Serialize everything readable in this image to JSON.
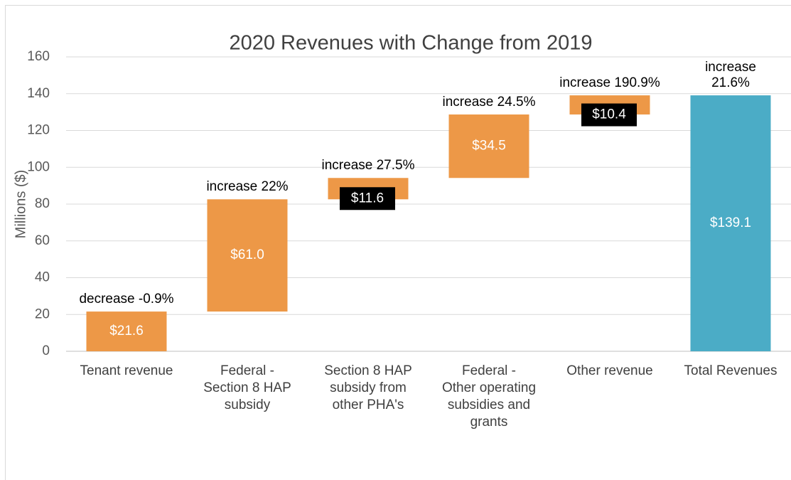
{
  "chart_data": {
    "type": "waterfall",
    "title": "2020 Revenues with Change from 2019",
    "y_label": "Millions ($)",
    "categories": [
      "Tenant revenue",
      "Federal -\nSection 8 HAP\nsubsidy",
      "Section 8 HAP\nsubsidy from\nother PHA's",
      "Federal -\nOther operating\nsubsidies and\ngrants",
      "Other revenue",
      "Total Revenues"
    ],
    "values": [
      21.6,
      61.0,
      11.6,
      34.5,
      10.4,
      139.1
    ],
    "value_labels": [
      "$21.6",
      "$61.0",
      "$11.6",
      "$34.5",
      "$10.4",
      "$139.1"
    ],
    "annotations": [
      "decrease -0.9%",
      "increase 22%",
      "increase 27.5%",
      "increase 24.5%",
      "increase 190.9%",
      "increase\n21.6%"
    ],
    "is_total": [
      false,
      false,
      false,
      false,
      false,
      true
    ],
    "color": "#ed9847",
    "total_color": "#4bacc6",
    "ylim": [
      0,
      160
    ],
    "yticks": [
      0,
      20,
      40,
      60,
      80,
      100,
      120,
      140,
      160
    ],
    "grid": true
  }
}
